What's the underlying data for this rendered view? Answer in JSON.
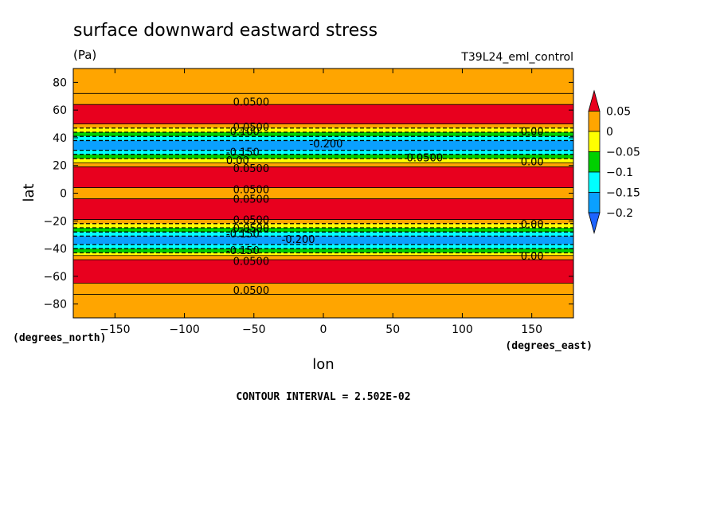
{
  "chart_data": {
    "type": "contour",
    "title": "surface downward eastward stress",
    "units": "(Pa)",
    "dataset": "T39L24_eml_control",
    "xlabel": "lon",
    "ylabel": "lat",
    "x_units": "(degrees_east)",
    "y_units": "(degrees_north)",
    "xlim": [
      -180,
      180
    ],
    "ylim": [
      -90,
      90
    ],
    "x_ticks": [
      -150,
      -100,
      -50,
      0,
      50,
      100,
      150
    ],
    "y_ticks": [
      -80,
      -60,
      -40,
      -20,
      0,
      20,
      40,
      60,
      80
    ],
    "footer": "CONTOUR INTERVAL = 2.502E-02",
    "colorbar": {
      "labels": [
        "0.05",
        "0",
        "−0.05",
        "−0.1",
        "−0.15",
        "−0.2"
      ],
      "levels": [
        0.05,
        0,
        -0.05,
        -0.1,
        -0.15,
        -0.2
      ],
      "colors": [
        "#e8001e",
        "#ffa500",
        "#ffff00",
        "#00d000",
        "#00ffff",
        "#0aa0ff",
        "#1e64ff"
      ]
    },
    "zonal_bands": [
      {
        "lat_min": 72,
        "lat_max": 90,
        "value": 0.03
      },
      {
        "lat_min": 64,
        "lat_max": 72,
        "value": 0.04
      },
      {
        "lat_min": 50,
        "lat_max": 64,
        "value": 0.07
      },
      {
        "lat_min": 47,
        "lat_max": 50,
        "value": 0.03
      },
      {
        "lat_min": 44,
        "lat_max": 47,
        "value": -0.02
      },
      {
        "lat_min": 41,
        "lat_max": 44,
        "value": -0.07
      },
      {
        "lat_min": 38,
        "lat_max": 41,
        "value": -0.12
      },
      {
        "lat_min": 31,
        "lat_max": 38,
        "value": -0.17
      },
      {
        "lat_min": 28,
        "lat_max": 31,
        "value": -0.12
      },
      {
        "lat_min": 25,
        "lat_max": 28,
        "value": -0.07
      },
      {
        "lat_min": 22,
        "lat_max": 25,
        "value": -0.02
      },
      {
        "lat_min": 19,
        "lat_max": 22,
        "value": 0.03
      },
      {
        "lat_min": 4,
        "lat_max": 19,
        "value": 0.07
      },
      {
        "lat_min": -4,
        "lat_max": 4,
        "value": 0.03
      },
      {
        "lat_min": -19,
        "lat_max": -4,
        "value": 0.07
      },
      {
        "lat_min": -22,
        "lat_max": -19,
        "value": 0.03
      },
      {
        "lat_min": -25,
        "lat_max": -22,
        "value": -0.02
      },
      {
        "lat_min": -28,
        "lat_max": -25,
        "value": -0.07
      },
      {
        "lat_min": -31,
        "lat_max": -28,
        "value": -0.12
      },
      {
        "lat_min": -37,
        "lat_max": -31,
        "value": -0.17
      },
      {
        "lat_min": -40,
        "lat_max": -37,
        "value": -0.12
      },
      {
        "lat_min": -43,
        "lat_max": -40,
        "value": -0.07
      },
      {
        "lat_min": -45,
        "lat_max": -43,
        "value": -0.02
      },
      {
        "lat_min": -48,
        "lat_max": -45,
        "value": 0.03
      },
      {
        "lat_min": -65,
        "lat_max": -48,
        "value": 0.07
      },
      {
        "lat_min": -73,
        "lat_max": -65,
        "value": 0.04
      },
      {
        "lat_min": -90,
        "lat_max": -73,
        "value": 0.03
      }
    ],
    "contour_labels": [
      {
        "text": "0.0500",
        "lon": -65,
        "lat": 66
      },
      {
        "text": "0.0500",
        "lon": -65,
        "lat": 48
      },
      {
        "text": "-0.100",
        "lon": -70,
        "lat": 45
      },
      {
        "text": "-0.150",
        "lon": -70,
        "lat": 30
      },
      {
        "text": "-0.200",
        "lon": -10,
        "lat": 36
      },
      {
        "text": "0.0500",
        "lon": 60,
        "lat": 26
      },
      {
        "text": "0.00",
        "lon": 142,
        "lat": 45
      },
      {
        "text": "0.00",
        "lon": 142,
        "lat": 23
      },
      {
        "text": "0.00",
        "lon": -70,
        "lat": 24
      },
      {
        "text": "0.0500",
        "lon": -65,
        "lat": 18
      },
      {
        "text": "0.0500",
        "lon": -65,
        "lat": 3
      },
      {
        "text": "0.0500",
        "lon": -65,
        "lat": -4
      },
      {
        "text": "0.0500",
        "lon": -65,
        "lat": -19
      },
      {
        "text": "0.0500",
        "lon": -65,
        "lat": -25
      },
      {
        "text": "-0.150",
        "lon": -70,
        "lat": -29
      },
      {
        "text": "-0.200",
        "lon": -30,
        "lat": -33
      },
      {
        "text": "-0.150",
        "lon": -70,
        "lat": -41
      },
      {
        "text": "0.0500",
        "lon": -65,
        "lat": -49
      },
      {
        "text": "0.00",
        "lon": 142,
        "lat": -22
      },
      {
        "text": "0.00",
        "lon": 142,
        "lat": -45
      },
      {
        "text": "0.0500",
        "lon": -65,
        "lat": -70
      }
    ]
  }
}
